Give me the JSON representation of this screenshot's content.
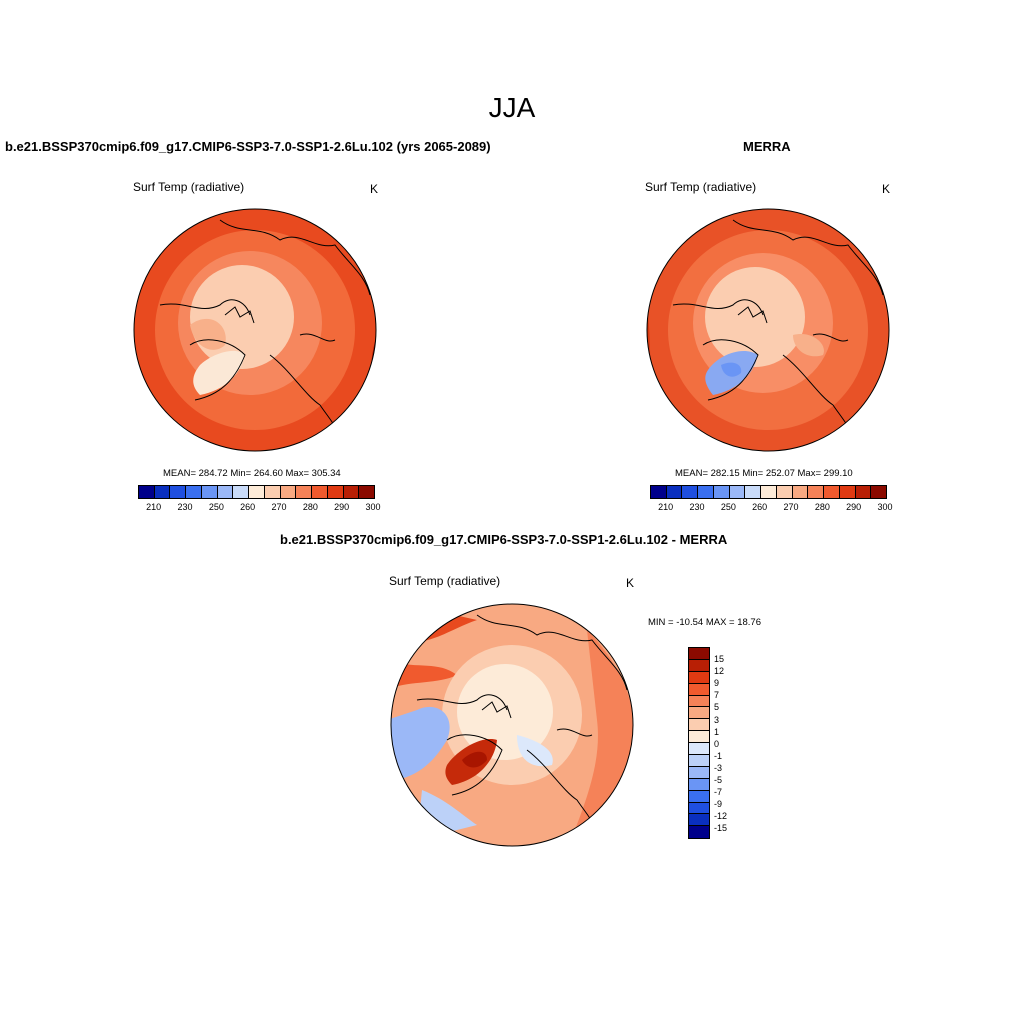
{
  "page": {
    "title": "JJA"
  },
  "panels": {
    "model": {
      "title": "b.e21.BSSP370cmip6.f09_g17.CMIP6-SSP3-7.0-SSP1-2.6Lu.102 (yrs 2065-2089)",
      "var_label": "Surf Temp (radiative)",
      "unit": "K",
      "stats": "MEAN= 284.72  Min= 264.60  Max= 305.34"
    },
    "obs": {
      "title": "MERRA",
      "var_label": "Surf Temp (radiative)",
      "unit": "K",
      "stats": "MEAN= 282.15  Min= 252.07  Max= 299.10"
    },
    "diff": {
      "title": "b.e21.BSSP370cmip6.f09_g17.CMIP6-SSP3-7.0-SSP1-2.6Lu.102 - MERRA",
      "var_label": "Surf Temp (radiative)",
      "unit": "K",
      "stats": "MIN = -10.54 MAX =  18.76"
    }
  },
  "colorbar_abs": {
    "ticks": [
      "210",
      "230",
      "250",
      "260",
      "270",
      "280",
      "290",
      "300"
    ],
    "colors": [
      "#00008b",
      "#0a2fbf",
      "#1f4fe0",
      "#3a6ff0",
      "#6a95f5",
      "#9bb8f7",
      "#c9dbf9",
      "#fdebd8",
      "#fbcdb0",
      "#f8a982",
      "#f58258",
      "#f05a2e",
      "#e03a12",
      "#b81f05",
      "#8b0a00"
    ]
  },
  "colorbar_diff": {
    "ticks": [
      "15",
      "12",
      "9",
      "7",
      "5",
      "3",
      "1",
      "0",
      "-1",
      "-3",
      "-5",
      "-7",
      "-9",
      "-12",
      "-15"
    ],
    "colors": [
      "#8b0a00",
      "#b81f05",
      "#e03a12",
      "#f05a2e",
      "#f58258",
      "#f8a982",
      "#fbcdb0",
      "#fdebd8",
      "#dce8fb",
      "#bcd1f8",
      "#9bb8f7",
      "#6a95f5",
      "#3a6ff0",
      "#1f4fe0",
      "#0a2fbf",
      "#00008b"
    ]
  }
}
